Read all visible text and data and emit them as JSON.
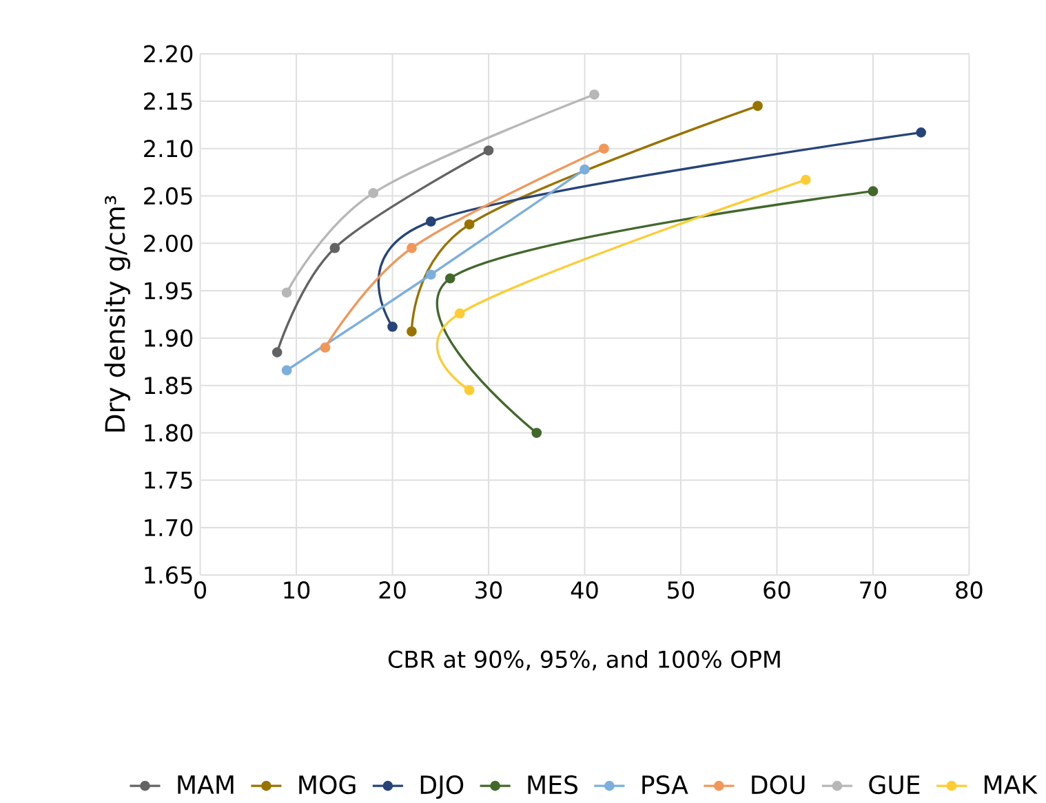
{
  "chart_data": {
    "type": "line",
    "xlabel": "CBR at 90%, 95%, and 100% OPM",
    "ylabel": "Dry density g/cm³",
    "xlim": [
      0,
      80
    ],
    "xticks": [
      0,
      10,
      20,
      30,
      40,
      50,
      60,
      70,
      80
    ],
    "ylim": [
      1.65,
      2.2
    ],
    "yticks": [
      {
        "value": 1.65,
        "label": "1.65"
      },
      {
        "value": 1.7,
        "label": "1.70"
      },
      {
        "value": 1.75,
        "label": "1.75"
      },
      {
        "value": 1.8,
        "label": "1.80"
      },
      {
        "value": 1.85,
        "label": "1.85"
      },
      {
        "value": 1.9,
        "label": "1.90"
      },
      {
        "value": 1.95,
        "label": "1.95"
      },
      {
        "value": 2.0,
        "label": "2.00"
      },
      {
        "value": 2.05,
        "label": "2.05"
      },
      {
        "value": 2.1,
        "label": "2.10"
      },
      {
        "value": 2.15,
        "label": "2.15"
      },
      {
        "value": 2.2,
        "label": "2.20"
      }
    ],
    "grid": true,
    "legend": "bottom",
    "marker": "circle",
    "line_style": "solid",
    "series": [
      {
        "name": "MAM",
        "color": "#636363",
        "x": [
          8,
          14,
          30
        ],
        "values": [
          1.885,
          1.995,
          2.098
        ]
      },
      {
        "name": "MOG",
        "color": "#997300",
        "x": [
          22,
          28,
          58
        ],
        "values": [
          1.907,
          2.02,
          2.145
        ]
      },
      {
        "name": "DJO",
        "color": "#264478",
        "x": [
          20,
          24,
          75
        ],
        "values": [
          1.912,
          2.023,
          2.117
        ]
      },
      {
        "name": "MES",
        "color": "#43682b",
        "x": [
          35,
          26,
          70
        ],
        "values": [
          1.8,
          1.963,
          2.055
        ]
      },
      {
        "name": "PSA",
        "color": "#7cafdd",
        "x": [
          9,
          24,
          40
        ],
        "values": [
          1.866,
          1.967,
          2.078
        ]
      },
      {
        "name": "DOU",
        "color": "#f1975a",
        "x": [
          13,
          22,
          42
        ],
        "values": [
          1.89,
          1.995,
          2.1
        ]
      },
      {
        "name": "GUE",
        "color": "#b7b7b7",
        "x": [
          9,
          18,
          41
        ],
        "values": [
          1.948,
          2.053,
          2.157
        ]
      },
      {
        "name": "MAK",
        "color": "#ffcd33",
        "x": [
          28,
          27,
          63
        ],
        "values": [
          1.845,
          1.926,
          2.067
        ]
      }
    ]
  }
}
